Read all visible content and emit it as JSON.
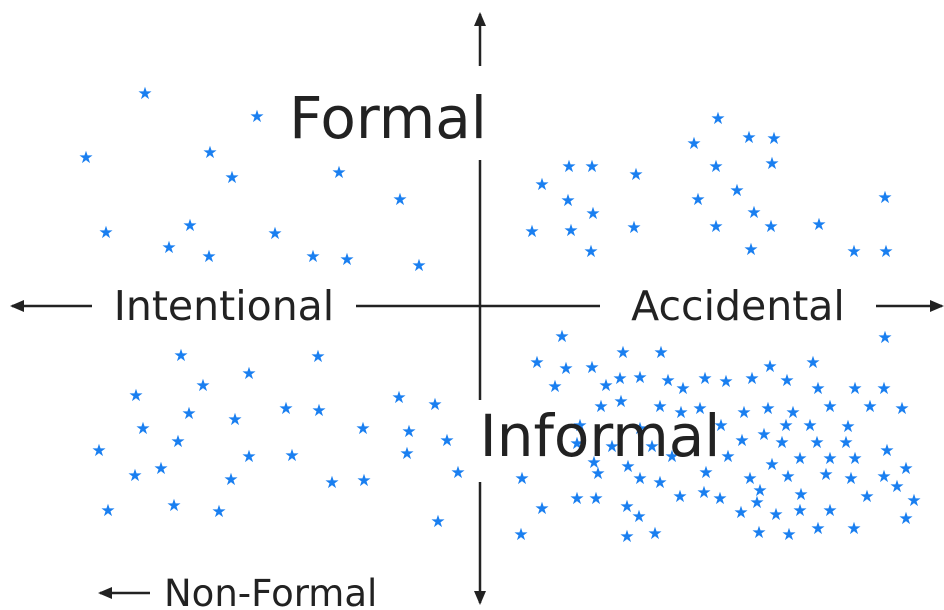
{
  "labels": {
    "top": "Formal",
    "bottom": "Informal",
    "left": "Intentional",
    "right": "Accidental",
    "corner": "Non-Formal"
  },
  "marker": {
    "glyph": "★",
    "icon": "star-icon"
  },
  "colors": {
    "text": "#222222",
    "axis": "#222222",
    "star": "#1a7ff0",
    "background": "#ffffff"
  }
}
